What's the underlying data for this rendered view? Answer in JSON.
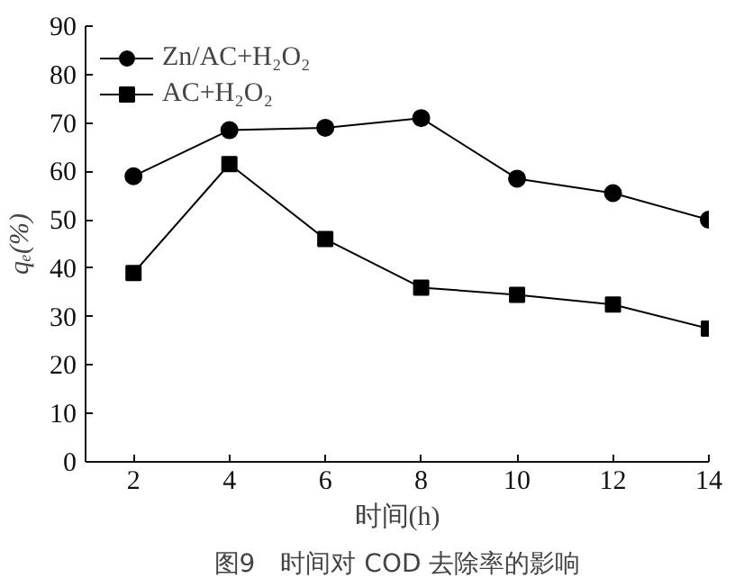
{
  "chart_data": {
    "type": "line",
    "title": "图9　时间对 COD 去除率的影响",
    "xlabel": "时间(h)",
    "ylabel": "qₑ(%)",
    "x": [
      2,
      4,
      6,
      8,
      10,
      12,
      14
    ],
    "series": [
      {
        "name": "Zn/AC+H₂O₂",
        "color": "#000000",
        "marker": "circle",
        "values": [
          59,
          68.5,
          69,
          71,
          58.5,
          55.5,
          50
        ]
      },
      {
        "name": "AC+H₂O₂",
        "color": "#000000",
        "marker": "square",
        "values": [
          39,
          61.5,
          46,
          36,
          34.5,
          32.5,
          27.5
        ]
      }
    ],
    "xlim": [
      1,
      14
    ],
    "xticks": [
      2,
      4,
      6,
      8,
      10,
      12,
      14
    ],
    "ylim": [
      0,
      90
    ],
    "yticks": [
      0,
      10,
      20,
      30,
      40,
      50,
      60,
      70,
      80,
      90
    ],
    "grid": false,
    "legend": "top left",
    "line_style": "solid"
  }
}
